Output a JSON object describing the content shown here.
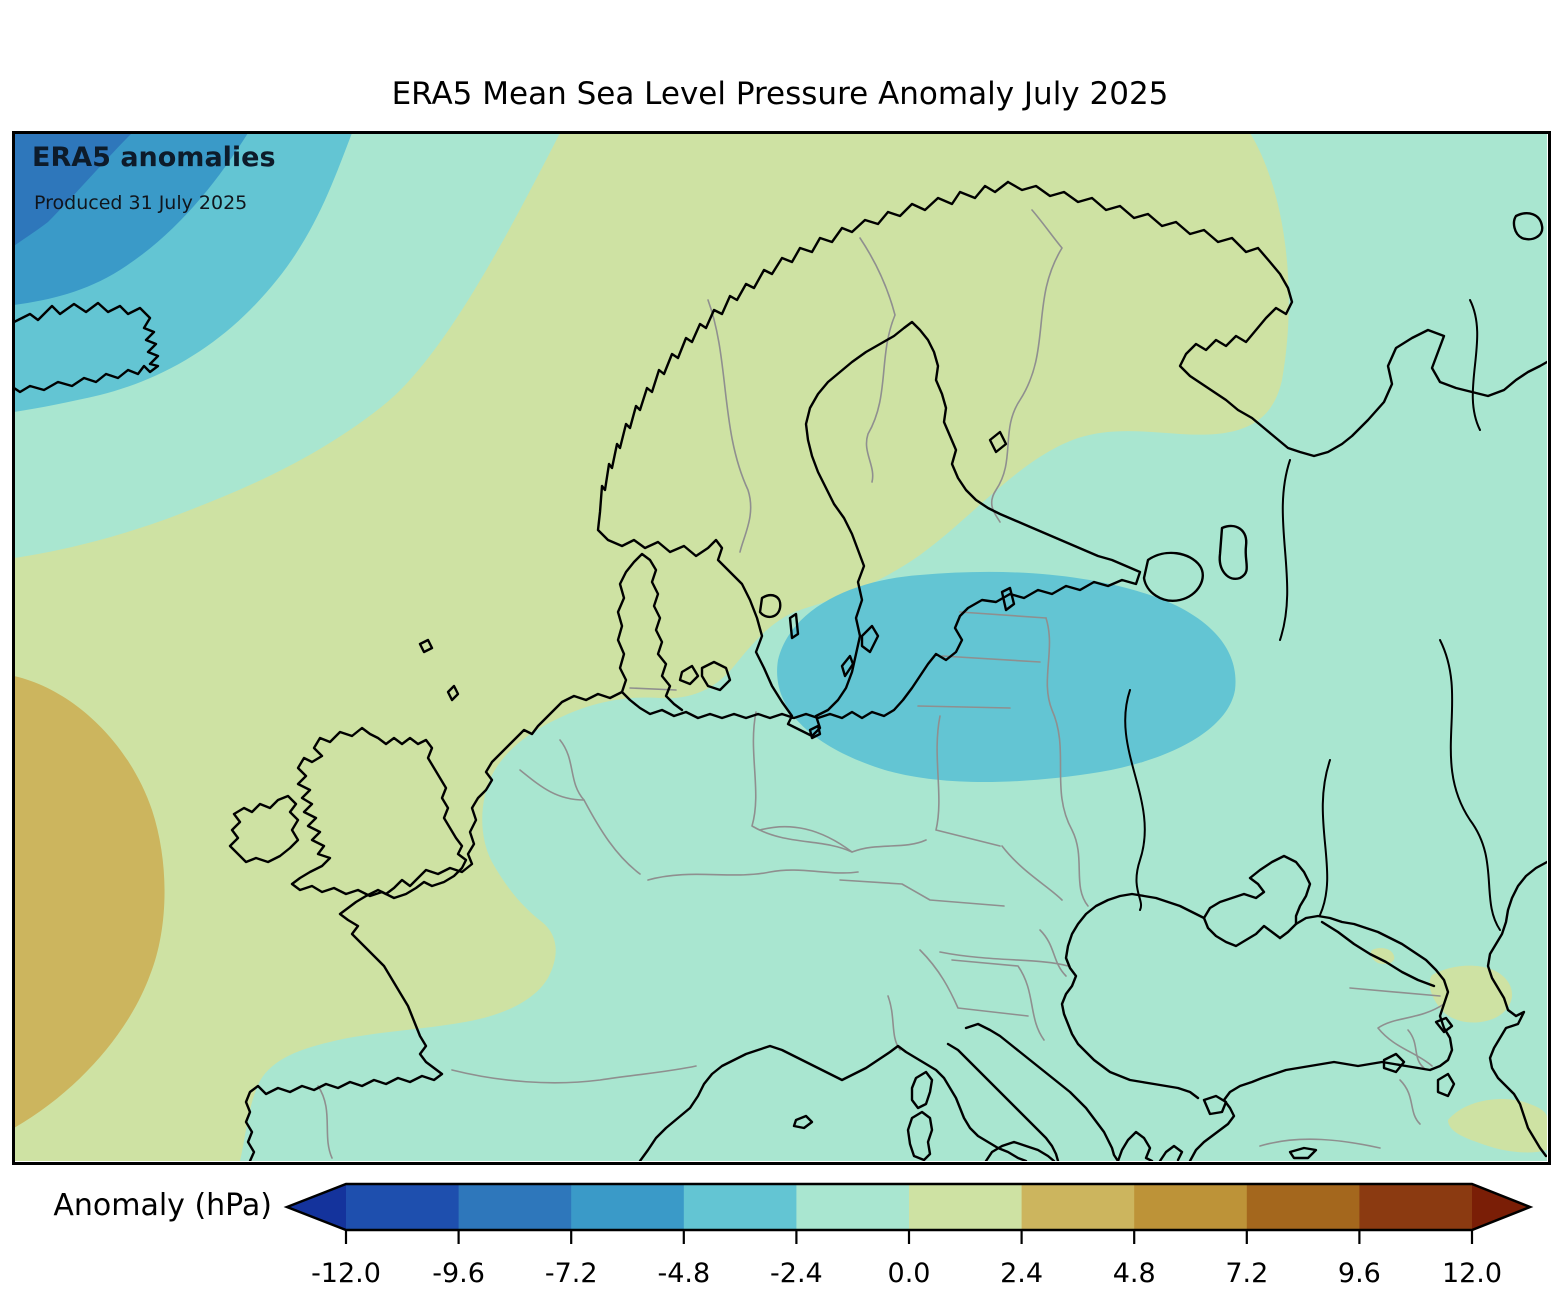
{
  "header": {
    "title": "ERA5 Mean Sea Level Pressure Anomaly July 2025"
  },
  "map": {
    "label": "ERA5 anomalies",
    "produced": "Produced 31 July 2025",
    "regions": [
      {
        "area": "northwest-atlantic-corner",
        "anomaly_hpa": "-9.6 to -7.2"
      },
      {
        "area": "northwest-atlantic-band",
        "anomaly_hpa": "-7.2 to -4.8"
      },
      {
        "area": "iceland-surroundings",
        "anomaly_hpa": "-4.8 to -2.4"
      },
      {
        "area": "baltic-belarus-low",
        "anomaly_hpa": "-4.8 to -2.4"
      },
      {
        "area": "central-europe-background",
        "anomaly_hpa": "-2.4 to 0.0"
      },
      {
        "area": "scandinavia-uk-france-band",
        "anomaly_hpa": "0.0 to 2.4"
      },
      {
        "area": "atlantic-west-of-iberia-high",
        "anomaly_hpa": "2.4 to 4.8"
      },
      {
        "area": "caucasus-patches",
        "anomaly_hpa": "0.0 to 2.4"
      }
    ]
  },
  "colorbar": {
    "label": "Anomaly (hPa)",
    "tick_labels": [
      "-12.0",
      "-9.6",
      "-7.2",
      "-4.8",
      "-2.4",
      "0.0",
      "2.4",
      "4.8",
      "7.2",
      "9.6",
      "12.0"
    ],
    "segment_colors": [
      "#1e4fae",
      "#2e77bb",
      "#3a9ac8",
      "#63c5d3",
      "#a9e6d0",
      "#cee2a3",
      "#ccb55e",
      "#bd9338",
      "#a4671d",
      "#8b3a11"
    ],
    "arrow_left_color": "#14339c",
    "arrow_right_color": "#7a1e06"
  },
  "palette": {
    "s2": "#2e77bb",
    "s3": "#3a9ac8",
    "s4": "#63c5d3",
    "s5": "#a9e6d0",
    "s6": "#cee2a3",
    "s7": "#ccb55e",
    "coastline": "#000000",
    "border": "#8f8f8f",
    "frame": "#000000"
  }
}
